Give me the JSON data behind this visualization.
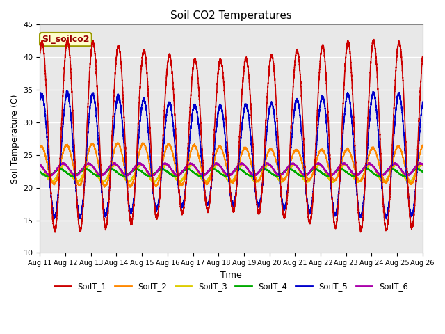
{
  "title": "Soil CO2 Temperatures",
  "xlabel": "Time",
  "ylabel": "Soil Temperature (C)",
  "ylim": [
    10,
    45
  ],
  "annotation": "SI_soilco2",
  "plot_bg_color": "#e8e8e8",
  "fig_bg_color": "#ffffff",
  "grid_color": "#ffffff",
  "series": {
    "SoilT_1": {
      "color": "#cc0000",
      "lw": 1.2
    },
    "SoilT_2": {
      "color": "#ff8800",
      "lw": 1.2
    },
    "SoilT_3": {
      "color": "#ddcc00",
      "lw": 1.2
    },
    "SoilT_4": {
      "color": "#00aa00",
      "lw": 1.2
    },
    "SoilT_5": {
      "color": "#0000cc",
      "lw": 1.2
    },
    "SoilT_6": {
      "color": "#aa00aa",
      "lw": 1.2
    }
  },
  "x_tick_labels": [
    "Aug 11",
    "Aug 12",
    "Aug 13",
    "Aug 14",
    "Aug 15",
    "Aug 16",
    "Aug 17",
    "Aug 18",
    "Aug 19",
    "Aug 20",
    "Aug 21",
    "Aug 22",
    "Aug 23",
    "Aug 24",
    "Aug 25",
    "Aug 26"
  ],
  "yticks": [
    10,
    15,
    20,
    25,
    30,
    35,
    40,
    45
  ]
}
